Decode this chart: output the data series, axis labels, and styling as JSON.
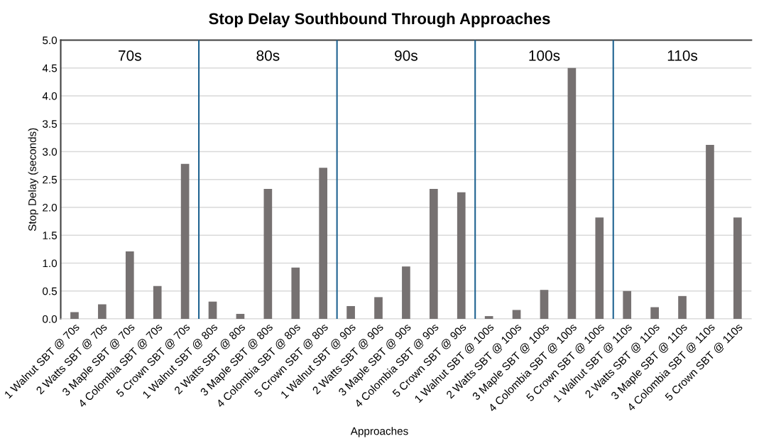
{
  "chart_data": {
    "type": "bar",
    "title": "Stop Delay Southbound Through Approaches",
    "xlabel": "Approaches",
    "ylabel": "Stop Delay (seconds)",
    "categories": [
      "1 Walnut SBT @ 70s",
      "2 Watts SBT @ 70s",
      "3 Maple SBT @ 70s",
      "4 Colombia SBT @ 70s",
      "5 Crown SBT @ 70s",
      "1 Walnut SBT @ 80s",
      "2 Watts SBT @ 80s",
      "3 Maple SBT @ 80s",
      "4 Colombia SBT @ 80s",
      "5 Crown SBT @ 80s",
      "1 Walnut SBT @ 90s",
      "2 Watts SBT @ 90s",
      "3 Maple SBT @ 90s",
      "4 Colombia SBT @ 90s",
      "5 Crown SBT @ 90s",
      "1 Walnut SBT @ 100s",
      "2 Watts SBT @ 100s",
      "3 Maple SBT @ 100s",
      "4 Colombia SBT @ 100s",
      "5 Crown SBT @ 100s",
      "1 Walnut SBT @ 110s",
      "2 Watts SBT @ 110s",
      "3 Maple SBT @ 110s",
      "4 Colombia SBT @ 110s",
      "5 Crown SBT @ 110s"
    ],
    "values": [
      0.12,
      0.26,
      1.21,
      0.59,
      2.78,
      0.31,
      0.09,
      2.33,
      0.92,
      2.71,
      0.23,
      0.39,
      0.94,
      2.33,
      2.27,
      0.05,
      0.16,
      0.52,
      4.5,
      1.82,
      0.5,
      0.21,
      0.41,
      3.12,
      1.82
    ],
    "color": "#767171",
    "ylim": [
      0,
      5
    ],
    "yticks": [
      {
        "value": 0,
        "label": "0.0"
      },
      {
        "value": 0.5,
        "label": "0.5"
      },
      {
        "value": 1,
        "label": "1.0"
      },
      {
        "value": 1.5,
        "label": "1.5"
      },
      {
        "value": 2,
        "label": "2.0"
      },
      {
        "value": 2.5,
        "label": "2.5"
      },
      {
        "value": 3,
        "label": "3.0"
      },
      {
        "value": 3.5,
        "label": "3.5"
      },
      {
        "value": 4,
        "label": "4.0"
      },
      {
        "value": 4.5,
        "label": "4.5"
      },
      {
        "value": 5,
        "label": "5.0"
      }
    ],
    "grid": "y",
    "annotations": [
      "70s",
      "80s",
      "90s",
      "100s",
      "110s"
    ]
  }
}
